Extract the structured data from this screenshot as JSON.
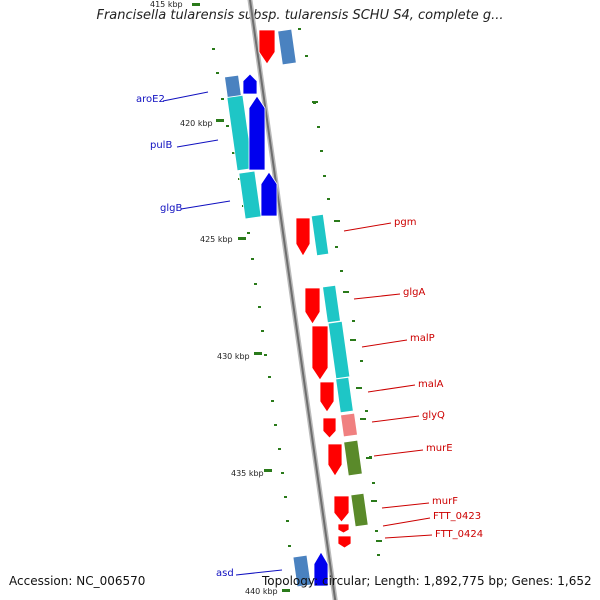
{
  "title": "Francisella tularensis subsp. tularensis SCHU S4, complete g...",
  "accession": "Accession: NC_006570",
  "topology": "Topology: circular; Length: 1,892,775 bp; Genes: 1,652",
  "colors": {
    "backbone": "#8a8a8a",
    "tick": "#2a7a1a",
    "label_left": "#1010c0",
    "label_right": "#cc0000",
    "cds_forward": "#ff0000",
    "cds_reverse": "#0000ee",
    "blast_cyan": "#1ec6c6",
    "blast_steel": "#4a82c0",
    "blast_olive": "#5a8a2a",
    "blast_pink": "#f08080"
  },
  "ticks": [
    {
      "label": "415 kbp"
    },
    {
      "label": "420 kbp"
    },
    {
      "label": "425 kbp"
    },
    {
      "label": "430 kbp"
    },
    {
      "label": "435 kbp"
    },
    {
      "label": "440 kbp"
    }
  ],
  "genes_left": [
    {
      "name": "aroE2"
    },
    {
      "name": "pulB"
    },
    {
      "name": "glgB"
    },
    {
      "name": "asd"
    }
  ],
  "genes_right": [
    {
      "name": "pgm"
    },
    {
      "name": "glgA"
    },
    {
      "name": "malP"
    },
    {
      "name": "malA"
    },
    {
      "name": "glyQ"
    },
    {
      "name": "murE"
    },
    {
      "name": "murF"
    },
    {
      "name": "FTT_0423"
    },
    {
      "name": "FTT_0424"
    }
  ]
}
